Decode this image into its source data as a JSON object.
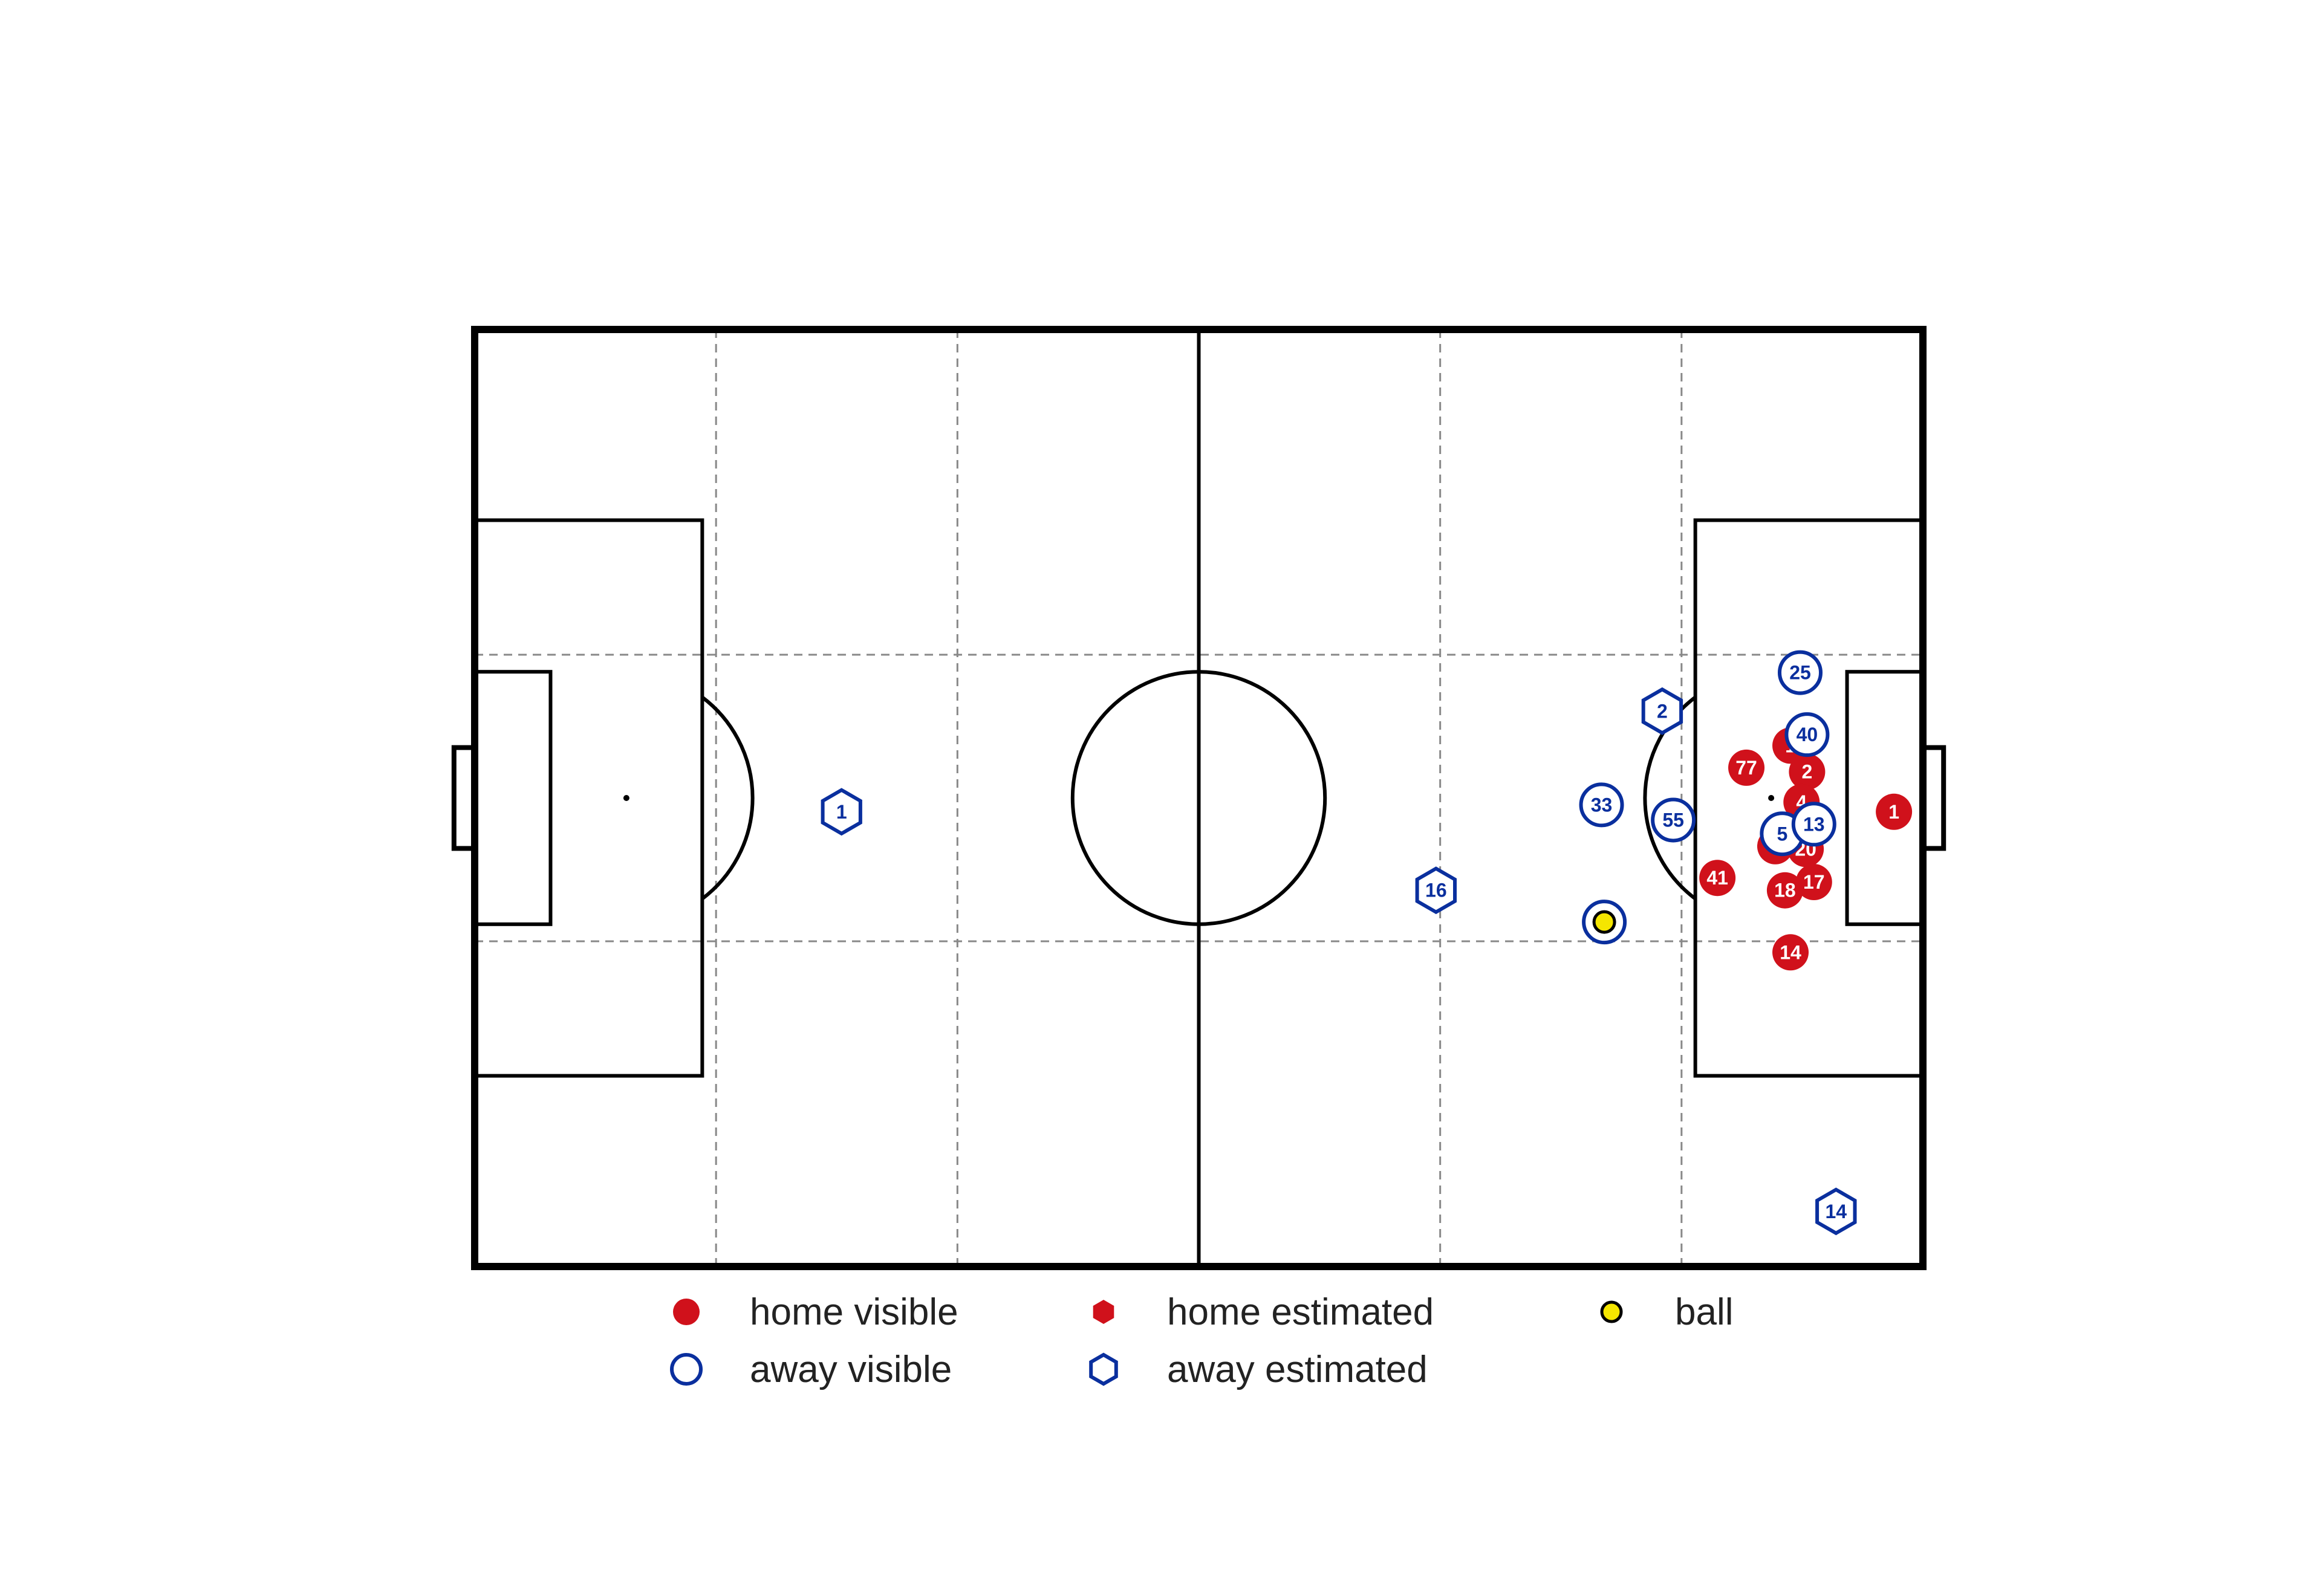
{
  "colors": {
    "home": "#d0111b",
    "away": "#0a2f9e",
    "ball": "#f5e600",
    "line": "#000000",
    "grid": "#888888"
  },
  "legend": {
    "home_visible": "home visible",
    "home_estimated": "home estimated",
    "ball": "ball",
    "away_visible": "away visible",
    "away_estimated": "away estimated"
  },
  "chart_data": {
    "type": "scatter",
    "xlim": [
      -52.5,
      52.5
    ],
    "ylim": [
      -34,
      34
    ],
    "grid": true,
    "legend_position": "bottom",
    "ball": {
      "x": 29.4,
      "y": -9.0
    },
    "home_visible": [
      {
        "label": "1",
        "x": 50.4,
        "y": -1.0
      },
      {
        "label": "77",
        "x": 39.7,
        "y": 2.2
      },
      {
        "label": "1",
        "x": 42.9,
        "y": 3.8
      },
      {
        "label": "2",
        "x": 44.1,
        "y": 1.9
      },
      {
        "label": "4",
        "x": 43.7,
        "y": -0.3
      },
      {
        "label": "2",
        "x": 41.8,
        "y": -3.5
      },
      {
        "label": "20",
        "x": 44.0,
        "y": -3.7
      },
      {
        "label": "17",
        "x": 44.6,
        "y": -6.1
      },
      {
        "label": "18",
        "x": 42.5,
        "y": -6.7
      },
      {
        "label": "41",
        "x": 37.6,
        "y": -5.8
      },
      {
        "label": "14",
        "x": 42.9,
        "y": -11.2
      }
    ],
    "home_estimated": [],
    "away_visible": [
      {
        "label": "25",
        "x": 43.6,
        "y": 9.1
      },
      {
        "label": "40",
        "x": 44.1,
        "y": 4.6
      },
      {
        "label": "33",
        "x": 29.2,
        "y": -0.5
      },
      {
        "label": "55",
        "x": 34.4,
        "y": -1.6
      },
      {
        "label": "5",
        "x": 42.3,
        "y": -2.6
      },
      {
        "label": "13",
        "x": 44.6,
        "y": -1.9
      },
      {
        "label": "",
        "x": 29.4,
        "y": -9.0
      }
    ],
    "away_estimated": [
      {
        "label": "1",
        "x": -25.9,
        "y": -1.0
      },
      {
        "label": "2",
        "x": 33.6,
        "y": 6.3
      },
      {
        "label": "16",
        "x": 17.2,
        "y": -6.7
      },
      {
        "label": "14",
        "x": 46.2,
        "y": -30.0
      }
    ]
  }
}
